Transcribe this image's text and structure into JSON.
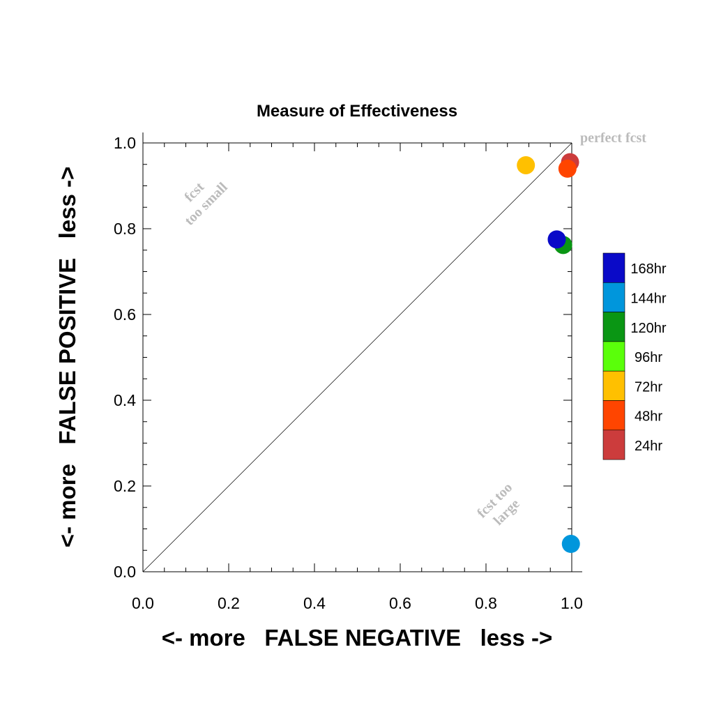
{
  "chart_data": {
    "type": "scatter",
    "title": "Measure of Effectiveness",
    "xlabel": "<- more   FALSE NEGATIVE   less ->",
    "ylabel": "<- more   FALSE POSITIVE   less ->",
    "xlim": [
      0,
      1
    ],
    "ylim": [
      0,
      1
    ],
    "x_ticks": [
      "0.0",
      "0.2",
      "0.4",
      "0.6",
      "0.8",
      "1.0"
    ],
    "y_ticks": [
      "0.0",
      "0.2",
      "0.4",
      "0.6",
      "0.8",
      "1.0"
    ],
    "grid": false,
    "diagonal_line": true,
    "annotations": {
      "perfect": "perfect fcst",
      "too_small_1": "fcst",
      "too_small_2": "too small",
      "too_large_1": "fcst too",
      "too_large_2": "large"
    },
    "legend_position": "right",
    "series": [
      {
        "name": "168hr",
        "color": "#0a0ac8",
        "points": [
          [
            0.965,
            0.775
          ]
        ]
      },
      {
        "name": "144hr",
        "color": "#0096dc",
        "points": [
          [
            0.998,
            0.065
          ]
        ]
      },
      {
        "name": "120hr",
        "color": "#0a9614",
        "points": [
          [
            0.98,
            0.762
          ]
        ]
      },
      {
        "name": "96hr",
        "color": "#5aff0a",
        "points": []
      },
      {
        "name": "72hr",
        "color": "#ffc000",
        "points": [
          [
            0.893,
            0.948
          ]
        ]
      },
      {
        "name": "48hr",
        "color": "#ff4500",
        "points": [
          [
            0.99,
            0.94
          ]
        ]
      },
      {
        "name": "24hr",
        "color": "#cc3c3c",
        "points": [
          [
            0.996,
            0.955
          ]
        ]
      }
    ]
  }
}
